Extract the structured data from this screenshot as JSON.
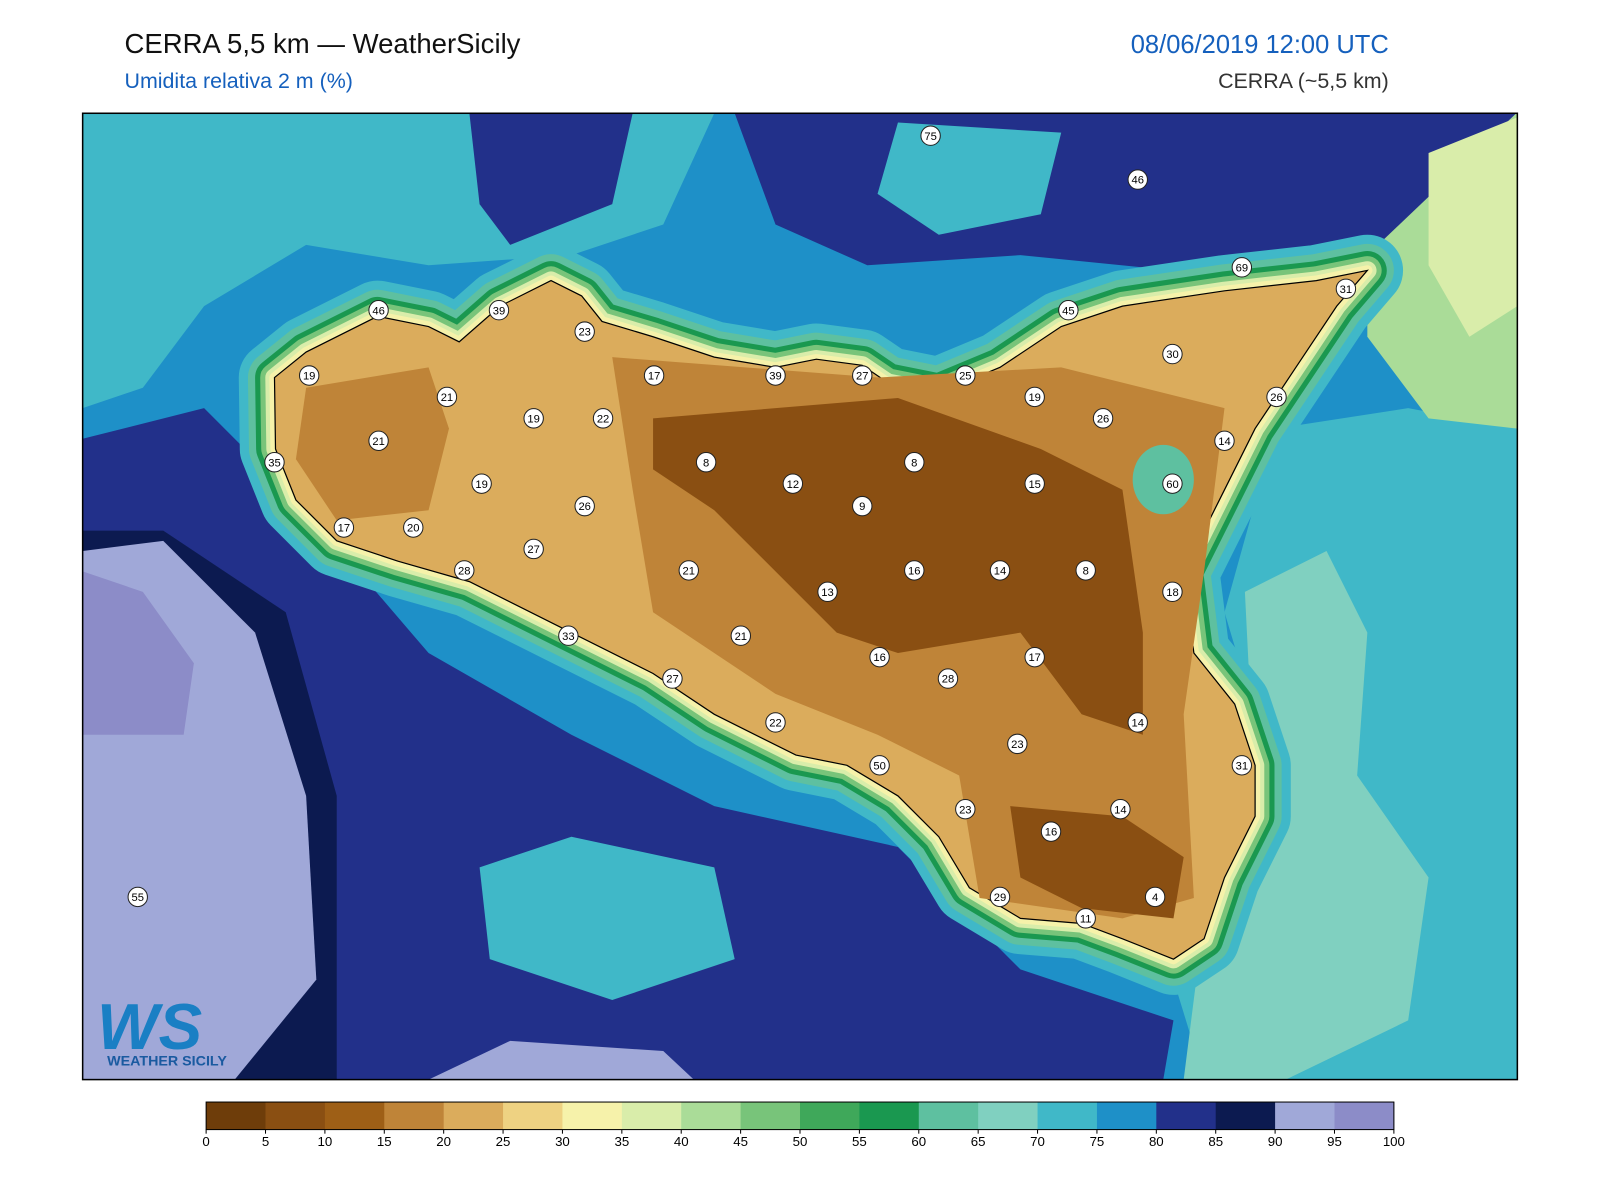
{
  "header": {
    "title": "CERRA 5,5 km — WeatherSicily",
    "subtitle": "Umidita relativa 2 m (%)",
    "date": "08/06/2019 12:00 UTC",
    "model": "CERRA (~5,5 km)"
  },
  "logo": {
    "text": "WS",
    "caption": "WEATHER SICILY"
  },
  "map": {
    "stations": [
      75,
      46,
      69,
      31,
      46,
      39,
      23,
      45,
      30,
      19,
      17,
      39,
      27,
      25,
      21,
      19,
      26,
      19,
      22,
      26,
      21,
      14,
      35,
      8,
      8,
      12,
      15,
      60,
      19,
      26,
      9,
      17,
      20,
      27,
      21,
      16,
      14,
      8,
      28,
      13,
      18,
      33,
      21,
      16,
      17,
      27,
      28,
      22,
      14,
      23,
      31,
      50,
      23,
      14,
      16,
      29,
      4,
      11,
      55
    ]
  },
  "colorbar": {
    "colors": [
      "#6e3d0a",
      "#8a4f12",
      "#9e5f16",
      "#bf8438",
      "#dbac5c",
      "#eed282",
      "#f6f2aa",
      "#d9edaa",
      "#aadc98",
      "#78c47a",
      "#3fa85a",
      "#1a9850",
      "#5ec0a0",
      "#80d0c0",
      "#40b8c8",
      "#1e90c8",
      "#22308a",
      "#0c1a50",
      "#a0a8d8",
      "#8c8cc8"
    ],
    "ticks": [
      0,
      5,
      10,
      15,
      20,
      25,
      30,
      35,
      40,
      45,
      50,
      55,
      60,
      65,
      70,
      75,
      80,
      85,
      90,
      95,
      100
    ]
  }
}
